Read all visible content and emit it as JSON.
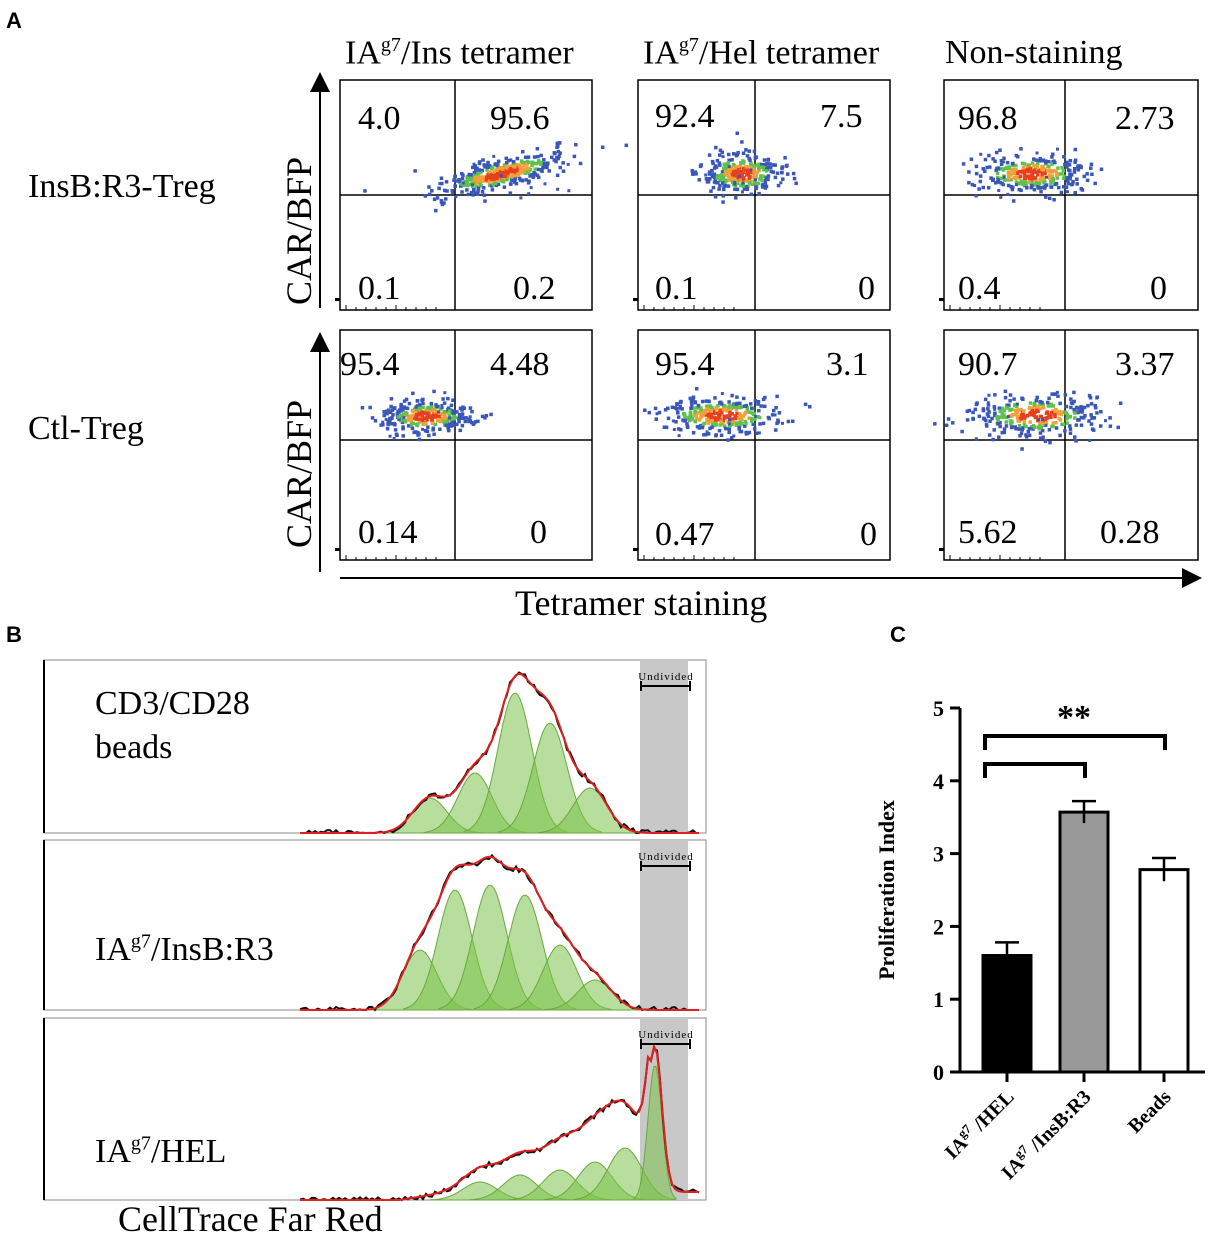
{
  "panel_labels": {
    "a": "A",
    "b": "B",
    "c": "C"
  },
  "panel_a": {
    "column_titles": [
      {
        "base": "IA",
        "sup": "g7",
        "rest": "/Ins tetramer"
      },
      {
        "base": "IA",
        "sup": "g7",
        "rest": "/Hel tetramer"
      },
      {
        "base": "Non-staining",
        "sup": "",
        "rest": ""
      }
    ],
    "row_labels": [
      "InsB:R3-Treg",
      "Ctl-Treg"
    ],
    "y_axis_label": "CAR/BFP",
    "x_axis_label": "Tetramer staining",
    "quadrants": [
      [
        {
          "ul": "4.0",
          "ur": "95.6",
          "ll": "0.1",
          "lr": "0.2"
        },
        {
          "ul": "92.4",
          "ur": "7.5",
          "ll": "0.1",
          "lr": "0"
        },
        {
          "ul": "96.8",
          "ur": "2.73",
          "ll": "0.4",
          "lr": "0"
        }
      ],
      [
        {
          "ul": "95.4",
          "ur": "4.48",
          "ll": "0.14",
          "lr": "0"
        },
        {
          "ul": "95.4",
          "ur": "3.1",
          "ll": "0.47",
          "lr": "0"
        },
        {
          "ul": "90.7",
          "ur": "3.37",
          "ll": "5.62",
          "lr": "0.28"
        }
      ]
    ]
  },
  "panel_b": {
    "gate_label": "Undivided",
    "x_axis_label": "CellTrace Far Red",
    "histograms": [
      {
        "line1": "CD3/CD28",
        "line2": "beads",
        "base": "",
        "sup": "",
        "rest": ""
      },
      {
        "line1": "",
        "line2": "",
        "base": "IA",
        "sup": "g7",
        "rest": "/InsB:R3"
      },
      {
        "line1": "",
        "line2": "",
        "base": "IA",
        "sup": "g7",
        "rest": "/HEL"
      }
    ]
  },
  "chart_data": {
    "type": "bar",
    "ylabel": "Proliferation Index",
    "ylim": [
      0,
      5
    ],
    "yticks": [
      "0",
      "1",
      "2",
      "3",
      "4",
      "5"
    ],
    "categories": [
      {
        "base": "IA",
        "sup": "g7",
        "rest": " /HEL"
      },
      {
        "base": "IA",
        "sup": "g7",
        "rest": " /InsB:R3"
      },
      {
        "base": "Beads",
        "sup": "",
        "rest": ""
      }
    ],
    "values": [
      1.6,
      3.57,
      2.78
    ],
    "errors": [
      0.18,
      0.15,
      0.16
    ],
    "fills": [
      "#000000",
      "#999999",
      "#ffffff"
    ],
    "significance": "**"
  }
}
